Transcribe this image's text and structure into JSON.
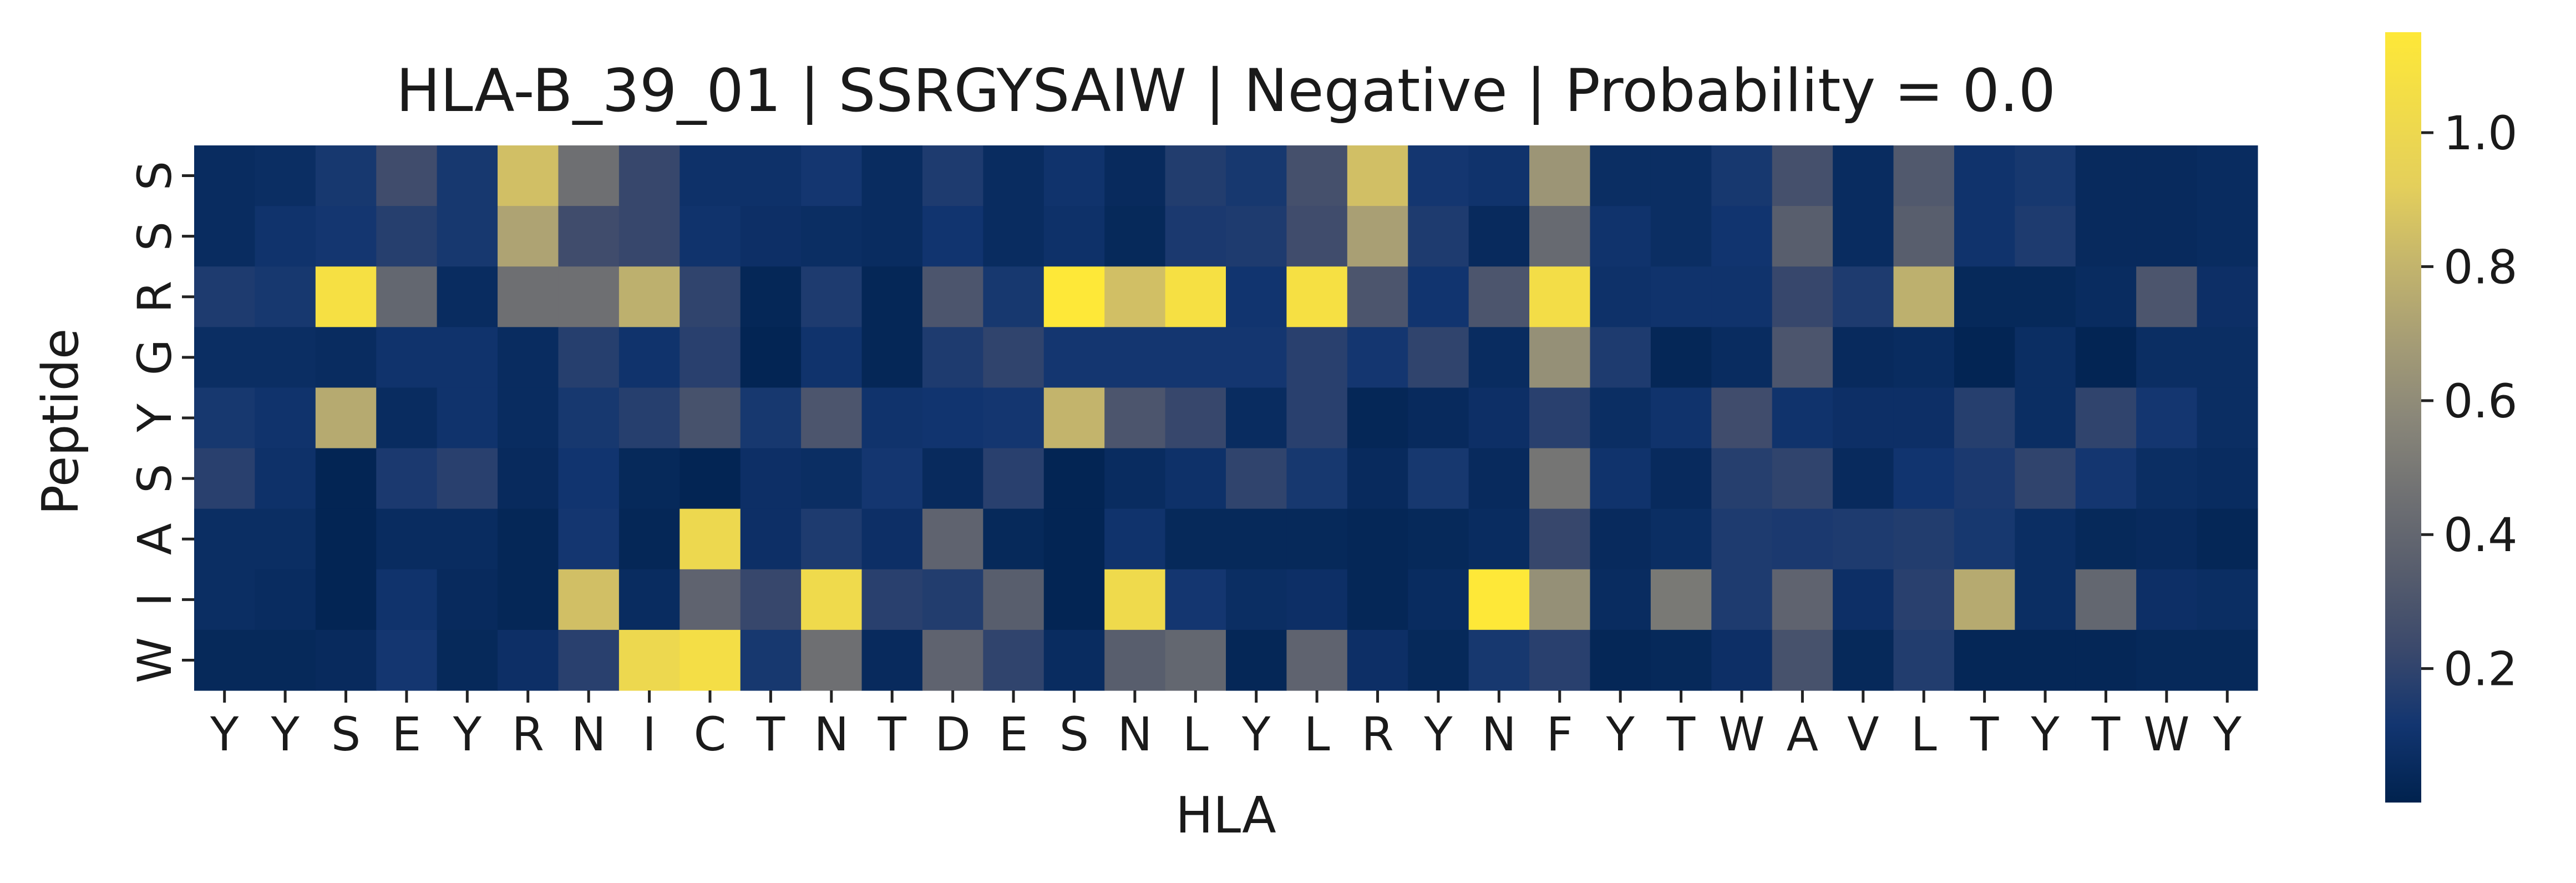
{
  "chart_data": {
    "type": "heatmap",
    "title": "HLA-B_39_01 | SSRGYSAIW | Negative | Probability = 0.0",
    "xlabel": "HLA",
    "ylabel": "Peptide",
    "x_categories": [
      "Y",
      "Y",
      "S",
      "E",
      "Y",
      "R",
      "N",
      "I",
      "C",
      "T",
      "N",
      "T",
      "D",
      "E",
      "S",
      "N",
      "L",
      "Y",
      "L",
      "R",
      "Y",
      "N",
      "F",
      "Y",
      "T",
      "W",
      "A",
      "V",
      "L",
      "T",
      "Y",
      "T",
      "W",
      "Y"
    ],
    "y_categories": [
      "S",
      "S",
      "R",
      "G",
      "Y",
      "S",
      "A",
      "I",
      "W"
    ],
    "colormap": "cividis",
    "colorbar": {
      "min": 0.0,
      "max": 1.15,
      "ticks": [
        0.2,
        0.4,
        0.6,
        0.8,
        1.0
      ],
      "tick_labels": [
        "0.2",
        "0.4",
        "0.6",
        "0.8",
        "1.0"
      ]
    },
    "values": [
      [
        0.06,
        0.07,
        0.13,
        0.25,
        0.13,
        0.85,
        0.45,
        0.22,
        0.09,
        0.09,
        0.12,
        0.06,
        0.15,
        0.06,
        0.1,
        0.05,
        0.16,
        0.13,
        0.27,
        0.85,
        0.12,
        0.1,
        0.65,
        0.07,
        0.07,
        0.13,
        0.27,
        0.06,
        0.32,
        0.1,
        0.13,
        0.05,
        0.05,
        0.06
      ],
      [
        0.06,
        0.1,
        0.12,
        0.17,
        0.13,
        0.72,
        0.25,
        0.22,
        0.1,
        0.08,
        0.07,
        0.06,
        0.11,
        0.06,
        0.09,
        0.04,
        0.14,
        0.15,
        0.25,
        0.7,
        0.15,
        0.05,
        0.42,
        0.1,
        0.07,
        0.11,
        0.35,
        0.06,
        0.35,
        0.1,
        0.15,
        0.05,
        0.05,
        0.06
      ],
      [
        0.15,
        0.13,
        1.08,
        0.4,
        0.06,
        0.45,
        0.45,
        0.78,
        0.2,
        0.03,
        0.15,
        0.03,
        0.3,
        0.13,
        1.15,
        0.85,
        1.08,
        0.11,
        1.08,
        0.3,
        0.11,
        0.3,
        1.05,
        0.09,
        0.1,
        0.1,
        0.22,
        0.15,
        0.78,
        0.04,
        0.04,
        0.06,
        0.3,
        0.08
      ],
      [
        0.07,
        0.07,
        0.06,
        0.1,
        0.1,
        0.06,
        0.17,
        0.1,
        0.18,
        0.02,
        0.1,
        0.03,
        0.15,
        0.2,
        0.12,
        0.12,
        0.12,
        0.12,
        0.18,
        0.12,
        0.2,
        0.06,
        0.62,
        0.15,
        0.03,
        0.06,
        0.3,
        0.05,
        0.06,
        0.02,
        0.07,
        0.02,
        0.07,
        0.07
      ],
      [
        0.13,
        0.1,
        0.75,
        0.06,
        0.1,
        0.06,
        0.13,
        0.17,
        0.28,
        0.13,
        0.3,
        0.1,
        0.11,
        0.12,
        0.8,
        0.3,
        0.22,
        0.06,
        0.18,
        0.03,
        0.05,
        0.08,
        0.18,
        0.07,
        0.1,
        0.25,
        0.1,
        0.08,
        0.08,
        0.17,
        0.07,
        0.2,
        0.12,
        0.07
      ],
      [
        0.18,
        0.09,
        0.02,
        0.14,
        0.18,
        0.05,
        0.11,
        0.04,
        0.02,
        0.08,
        0.07,
        0.12,
        0.05,
        0.18,
        0.02,
        0.06,
        0.09,
        0.2,
        0.13,
        0.05,
        0.13,
        0.05,
        0.48,
        0.1,
        0.05,
        0.17,
        0.2,
        0.05,
        0.11,
        0.14,
        0.2,
        0.12,
        0.07,
        0.06
      ],
      [
        0.07,
        0.07,
        0.02,
        0.06,
        0.06,
        0.03,
        0.12,
        0.03,
        1.0,
        0.08,
        0.15,
        0.08,
        0.38,
        0.04,
        0.02,
        0.1,
        0.04,
        0.04,
        0.04,
        0.03,
        0.04,
        0.06,
        0.22,
        0.05,
        0.07,
        0.15,
        0.14,
        0.15,
        0.16,
        0.13,
        0.07,
        0.04,
        0.05,
        0.03
      ],
      [
        0.07,
        0.06,
        0.02,
        0.1,
        0.05,
        0.03,
        0.85,
        0.06,
        0.38,
        0.22,
        1.02,
        0.18,
        0.16,
        0.35,
        0.02,
        1.02,
        0.12,
        0.07,
        0.08,
        0.03,
        0.06,
        1.15,
        0.62,
        0.06,
        0.5,
        0.15,
        0.38,
        0.08,
        0.18,
        0.75,
        0.07,
        0.4,
        0.08,
        0.07
      ],
      [
        0.04,
        0.04,
        0.05,
        0.12,
        0.04,
        0.08,
        0.18,
        1.0,
        1.06,
        0.13,
        0.45,
        0.05,
        0.38,
        0.2,
        0.06,
        0.35,
        0.4,
        0.03,
        0.38,
        0.08,
        0.04,
        0.13,
        0.18,
        0.03,
        0.04,
        0.08,
        0.28,
        0.04,
        0.16,
        0.03,
        0.03,
        0.03,
        0.04,
        0.04
      ]
    ]
  }
}
